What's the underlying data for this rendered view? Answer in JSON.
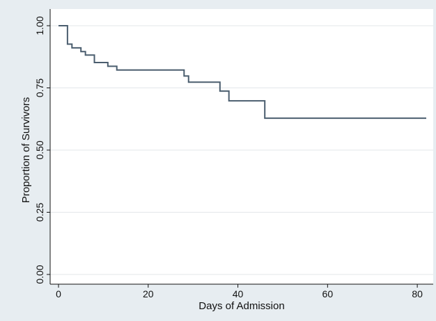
{
  "chart_data": {
    "type": "line",
    "subtype": "kaplan-meier-step",
    "title": "",
    "xlabel": "Days of Admission",
    "ylabel": "Proportion of Survivors",
    "xlim": [
      0,
      82
    ],
    "ylim": [
      0,
      1
    ],
    "x_ticks": [
      "0",
      "20",
      "40",
      "60",
      "80"
    ],
    "y_ticks": [
      "0.00",
      "0.25",
      "0.50",
      "0.75",
      "1.00"
    ],
    "grid": "horizontal",
    "legend": "none",
    "series": [
      {
        "color": "#4a5d6e",
        "x": [
          0,
          2,
          3,
          5,
          6,
          8,
          11,
          13,
          28,
          29,
          36,
          38,
          46,
          82
        ],
        "y": [
          1.0,
          0.926,
          0.911,
          0.896,
          0.882,
          0.852,
          0.837,
          0.822,
          0.798,
          0.773,
          0.737,
          0.698,
          0.628,
          0.628
        ]
      }
    ]
  }
}
